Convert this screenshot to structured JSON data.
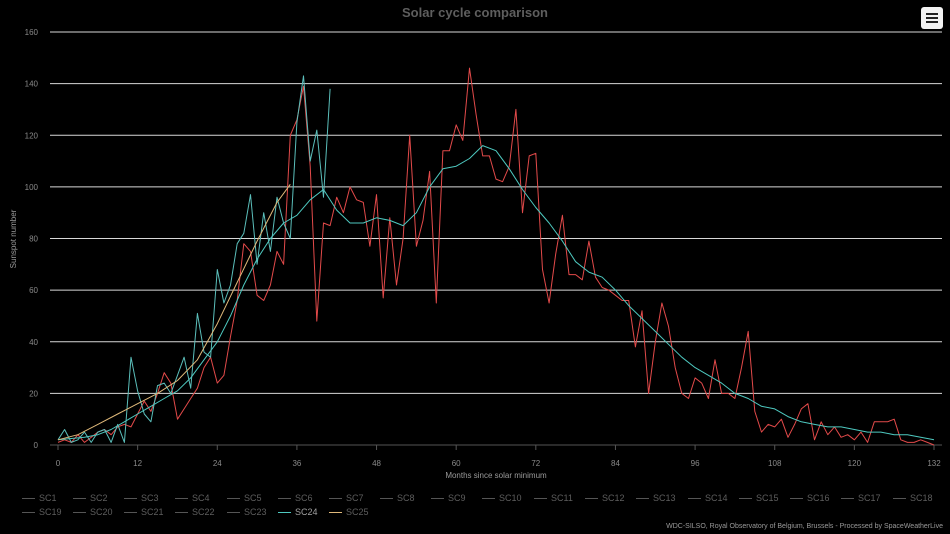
{
  "chart_data": {
    "type": "line",
    "title": "Solar cycle comparison",
    "xlabel": "Months since solar minimum",
    "ylabel": "Sunspot number",
    "xlim": [
      0,
      132
    ],
    "ylim": [
      0,
      160
    ],
    "xticks": [
      0,
      12,
      24,
      36,
      48,
      60,
      72,
      84,
      96,
      108,
      120,
      132
    ],
    "yticks": [
      0,
      20,
      40,
      60,
      80,
      100,
      120,
      140,
      160
    ],
    "grid": true,
    "legend_placement": "bottom",
    "series": [
      {
        "name": "SC24",
        "color": "#4ec9c0",
        "kind": "smoothed",
        "x": [
          0,
          2,
          4,
          6,
          8,
          10,
          12,
          14,
          16,
          18,
          20,
          22,
          24,
          26,
          28,
          30,
          32,
          34,
          36,
          38,
          40,
          42,
          44,
          46,
          48,
          50,
          52,
          54,
          56,
          58,
          60,
          62,
          64,
          66,
          68,
          70,
          72,
          74,
          76,
          78,
          80,
          82,
          84,
          86,
          88,
          90,
          92,
          94,
          96,
          98,
          100,
          102,
          104,
          106,
          108,
          110,
          112,
          114,
          116,
          118,
          120,
          122,
          124,
          126,
          128,
          130,
          132
        ],
        "y": [
          2,
          2.5,
          3,
          4,
          6,
          9,
          12,
          15,
          18,
          21,
          26,
          33,
          40,
          50,
          62,
          72,
          80,
          86,
          89,
          95,
          99,
          91,
          86,
          86,
          88,
          87,
          85,
          90,
          100,
          107,
          108,
          111,
          116,
          114,
          107,
          99,
          92,
          86,
          79,
          71,
          67,
          65,
          60,
          54,
          49,
          44,
          39,
          34,
          30,
          27,
          24,
          20,
          18,
          15,
          14,
          11,
          9,
          8,
          7,
          7,
          6,
          5,
          5,
          4,
          4,
          3,
          2
        ]
      },
      {
        "name": "SC24 monthly",
        "color": "#e34a4a",
        "kind": "monthly",
        "x": [
          0,
          1,
          2,
          3,
          4,
          5,
          6,
          7,
          8,
          9,
          10,
          11,
          12,
          13,
          14,
          15,
          16,
          17,
          18,
          19,
          20,
          21,
          22,
          23,
          24,
          25,
          26,
          27,
          28,
          29,
          30,
          31,
          32,
          33,
          34,
          35,
          36,
          37,
          38,
          39,
          40,
          41,
          42,
          43,
          44,
          45,
          46,
          47,
          48,
          49,
          50,
          51,
          52,
          53,
          54,
          55,
          56,
          57,
          58,
          59,
          60,
          61,
          62,
          63,
          64,
          65,
          66,
          67,
          68,
          69,
          70,
          71,
          72,
          73,
          74,
          75,
          76,
          77,
          78,
          79,
          80,
          81,
          82,
          83,
          84,
          85,
          86,
          87,
          88,
          89,
          90,
          91,
          92,
          93,
          94,
          95,
          96,
          97,
          98,
          99,
          100,
          101,
          102,
          103,
          104,
          105,
          106,
          107,
          108,
          109,
          110,
          111,
          112,
          113,
          114,
          115,
          116,
          117,
          118,
          119,
          120,
          121,
          122,
          123,
          124,
          125,
          126,
          127,
          128,
          129,
          130,
          131,
          132
        ],
        "y": [
          1,
          2,
          1,
          4,
          1,
          3,
          5,
          6,
          4,
          7,
          8,
          7,
          12,
          17,
          13,
          20,
          28,
          24,
          10,
          14,
          18,
          22,
          30,
          34,
          24,
          27,
          42,
          56,
          78,
          75,
          58,
          56,
          62,
          75,
          70,
          120,
          126,
          139,
          108,
          48,
          86,
          85,
          96,
          90,
          100,
          95,
          94,
          77,
          97,
          57,
          88,
          62,
          80,
          120,
          77,
          87,
          106,
          55,
          114,
          114,
          124,
          118,
          146,
          128,
          112,
          112,
          103,
          102,
          108,
          130,
          90,
          112,
          113,
          68,
          55,
          74,
          89,
          66,
          66,
          64,
          79,
          65,
          61,
          60,
          58,
          56,
          56,
          38,
          52,
          20,
          40,
          55,
          46,
          30,
          20,
          18,
          26,
          24,
          18,
          33,
          20,
          20,
          18,
          30,
          44,
          13,
          5,
          8,
          7,
          10,
          3,
          8,
          14,
          16,
          2,
          9,
          4,
          7,
          3,
          4,
          2,
          5,
          1,
          9,
          9,
          9,
          10,
          2,
          1,
          1,
          2,
          1,
          0
        ]
      },
      {
        "name": "SC25",
        "color": "#5bbfbb",
        "kind": "monthly",
        "x": [
          0,
          1,
          2,
          3,
          4,
          5,
          6,
          7,
          8,
          9,
          10,
          11,
          12,
          13,
          14,
          15,
          16,
          17,
          18,
          19,
          20,
          21,
          22,
          23,
          24,
          25,
          26,
          27,
          28,
          29,
          30,
          31,
          32,
          33,
          34,
          35,
          36,
          37,
          38,
          39,
          40,
          41
        ],
        "y": [
          2,
          6,
          1,
          2,
          5,
          1,
          5,
          6,
          1,
          8,
          1,
          34,
          21,
          12,
          9,
          23,
          24,
          20,
          27,
          34,
          22,
          51,
          36,
          34,
          68,
          55,
          62,
          78,
          82,
          97,
          70,
          90,
          75,
          96,
          86,
          80,
          125,
          143,
          110,
          122,
          96,
          138
        ]
      },
      {
        "name": "SC25 smoothed",
        "color": "#e0b97a",
        "kind": "smoothed",
        "x": [
          0,
          3,
          6,
          9,
          12,
          15,
          18,
          21,
          24,
          27,
          30,
          33,
          35
        ],
        "y": [
          2,
          4,
          8,
          12,
          16,
          20,
          25,
          33,
          47,
          63,
          79,
          94,
          101
        ]
      }
    ],
    "legend": [
      "SC1",
      "SC2",
      "SC3",
      "SC4",
      "SC5",
      "SC6",
      "SC7",
      "SC8",
      "SC9",
      "SC10",
      "SC11",
      "SC12",
      "SC13",
      "SC14",
      "SC15",
      "SC16",
      "SC17",
      "SC18",
      "SC19",
      "SC20",
      "SC21",
      "SC22",
      "SC23",
      "SC24",
      "SC25"
    ],
    "legend_colors": {
      "SC24": "#4ec9c0",
      "SC25": "#e0b97a"
    },
    "legend_active": [
      "SC24"
    ]
  },
  "credit": "WDC-SILSO, Royal Observatory of Belgium, Brussels - Processed by SpaceWeatherLive",
  "menu_icon": "hamburger-menu-icon"
}
